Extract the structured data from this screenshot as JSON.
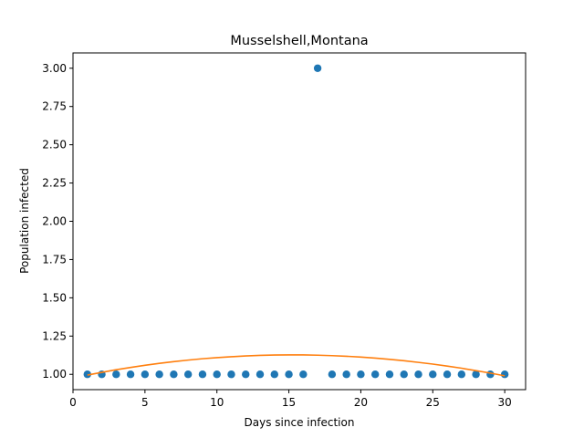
{
  "chart_data": {
    "type": "scatter",
    "title": "Musselshell,Montana",
    "xlabel": "Days since infection",
    "ylabel": "Population infected",
    "xlim": [
      0.0,
      31.45
    ],
    "ylim": [
      0.9,
      3.1
    ],
    "xticks": [
      0,
      5,
      10,
      15,
      20,
      25,
      30
    ],
    "xtick_labels": [
      "0",
      "5",
      "10",
      "15",
      "20",
      "25",
      "30"
    ],
    "yticks": [
      1.0,
      1.25,
      1.5,
      1.75,
      2.0,
      2.25,
      2.5,
      2.75,
      3.0
    ],
    "ytick_labels": [
      "1.00",
      "1.25",
      "1.50",
      "1.75",
      "2.00",
      "2.25",
      "2.50",
      "2.75",
      "3.00"
    ],
    "grid": false,
    "series": [
      {
        "kind": "scatter",
        "color": "#1f77b4",
        "x": [
          1,
          2,
          3,
          4,
          5,
          6,
          7,
          8,
          9,
          10,
          11,
          12,
          13,
          14,
          15,
          16,
          17,
          18,
          19,
          20,
          21,
          22,
          23,
          24,
          25,
          26,
          27,
          28,
          29,
          30
        ],
        "y": [
          1,
          1,
          1,
          1,
          1,
          1,
          1,
          1,
          1,
          1,
          1,
          1,
          1,
          1,
          1,
          1,
          3,
          1,
          1,
          1,
          1,
          1,
          1,
          1,
          1,
          1,
          1,
          1,
          1,
          1
        ]
      },
      {
        "kind": "line",
        "color": "#ff7f0e",
        "x": [
          1,
          2,
          3,
          4,
          5,
          6,
          7,
          8,
          9,
          10,
          11,
          12,
          13,
          14,
          15,
          16,
          17,
          18,
          19,
          20,
          21,
          22,
          23,
          24,
          25,
          26,
          27,
          28,
          29,
          30
        ],
        "y": [
          0.995,
          1.013,
          1.03,
          1.045,
          1.059,
          1.072,
          1.083,
          1.093,
          1.102,
          1.109,
          1.115,
          1.12,
          1.124,
          1.126,
          1.127,
          1.127,
          1.125,
          1.122,
          1.118,
          1.113,
          1.106,
          1.098,
          1.089,
          1.078,
          1.067,
          1.054,
          1.04,
          1.024,
          1.008,
          0.99
        ]
      }
    ]
  }
}
